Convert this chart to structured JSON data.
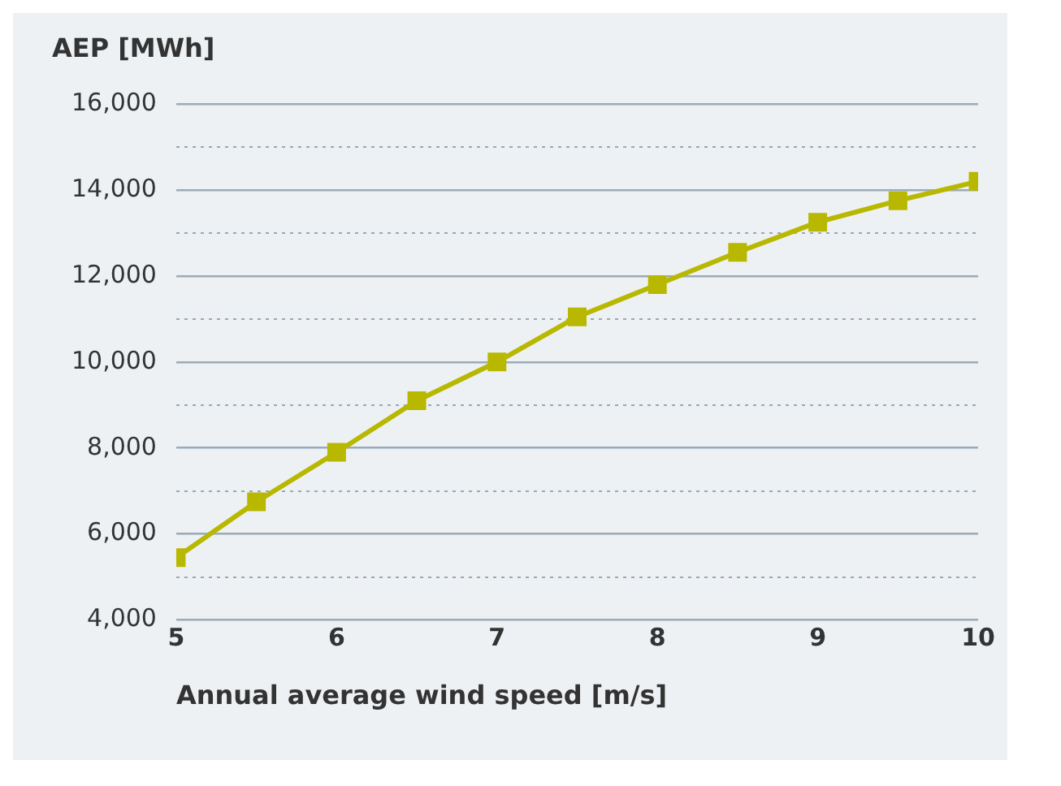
{
  "chart_data": {
    "type": "line",
    "xlabel": "Annual average wind speed [m/s]",
    "ylabel": "AEP [MWh]",
    "x": [
      5,
      5.5,
      6,
      6.5,
      7,
      7.5,
      8,
      8.5,
      9,
      9.5,
      10
    ],
    "series": [
      {
        "color": "#b8b800",
        "values": [
          5450,
          6750,
          7900,
          9100,
          10000,
          11050,
          11800,
          12550,
          13250,
          13750,
          14200
        ]
      }
    ],
    "xlim": [
      5,
      10
    ],
    "xticks": [
      5,
      6,
      7,
      8,
      9,
      10
    ],
    "ylim": [
      4000,
      16000
    ],
    "yticks": [
      {
        "value": 4000,
        "label": "4,000"
      },
      {
        "value": 5000,
        "label": null
      },
      {
        "value": 6000,
        "label": "6,000"
      },
      {
        "value": 7000,
        "label": null
      },
      {
        "value": 8000,
        "label": "8,000"
      },
      {
        "value": 9000,
        "label": null
      },
      {
        "value": 10000,
        "label": "10,000"
      },
      {
        "value": 11000,
        "label": null
      },
      {
        "value": 12000,
        "label": "12,000"
      },
      {
        "value": 13000,
        "label": null
      },
      {
        "value": 14000,
        "label": "14,000"
      },
      {
        "value": 15000,
        "label": null
      },
      {
        "value": 16000,
        "label": "16,000"
      }
    ],
    "grid": "y",
    "legend": false,
    "marker": "square",
    "line_style": "solid"
  }
}
